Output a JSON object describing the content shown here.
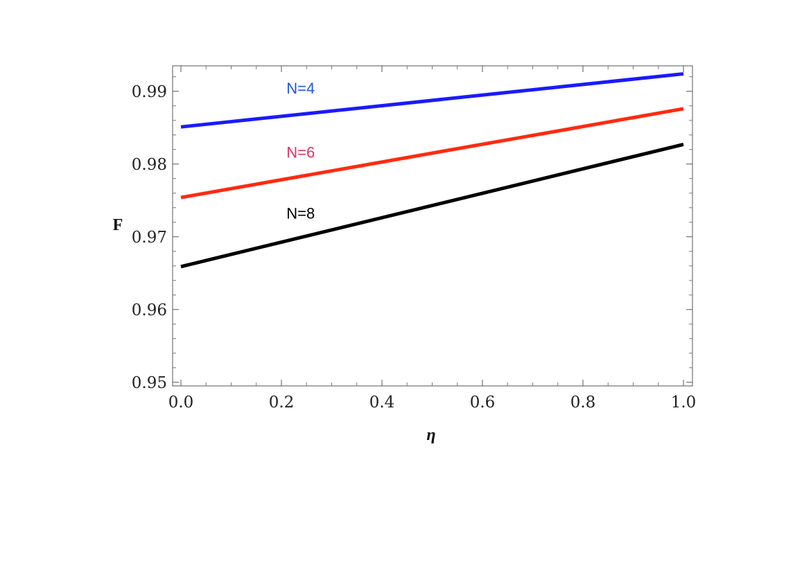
{
  "chart_data": {
    "type": "line",
    "title": "",
    "xlabel": "η",
    "ylabel": "F",
    "xlim": [
      0.0,
      1.0
    ],
    "ylim": [
      0.9495,
      0.9935
    ],
    "x_ticks": [
      "0.0",
      "0.2",
      "0.4",
      "0.6",
      "0.8",
      "1.0"
    ],
    "y_ticks": [
      "0.95",
      "0.96",
      "0.97",
      "0.98",
      "0.99"
    ],
    "grid": false,
    "series": [
      {
        "name": "N=4",
        "color": "#1a1aff",
        "label_color": "#2255dd",
        "x": [
          0.0,
          1.0
        ],
        "y": [
          0.9851,
          0.9924
        ]
      },
      {
        "name": "N=6",
        "color": "#ff2a10",
        "label_color": "#dd3366",
        "x": [
          0.0,
          1.0
        ],
        "y": [
          0.9754,
          0.9876
        ]
      },
      {
        "name": "N=8",
        "color": "#000000",
        "label_color": "#000000",
        "x": [
          0.0,
          1.0
        ],
        "y": [
          0.9659,
          0.9827
        ]
      }
    ],
    "annotations": [
      {
        "text": "N=4",
        "x": 0.21,
        "y": 0.9897
      },
      {
        "text": "N=6",
        "x": 0.21,
        "y": 0.9809
      },
      {
        "text": "N=8",
        "x": 0.21,
        "y": 0.9725
      }
    ]
  }
}
